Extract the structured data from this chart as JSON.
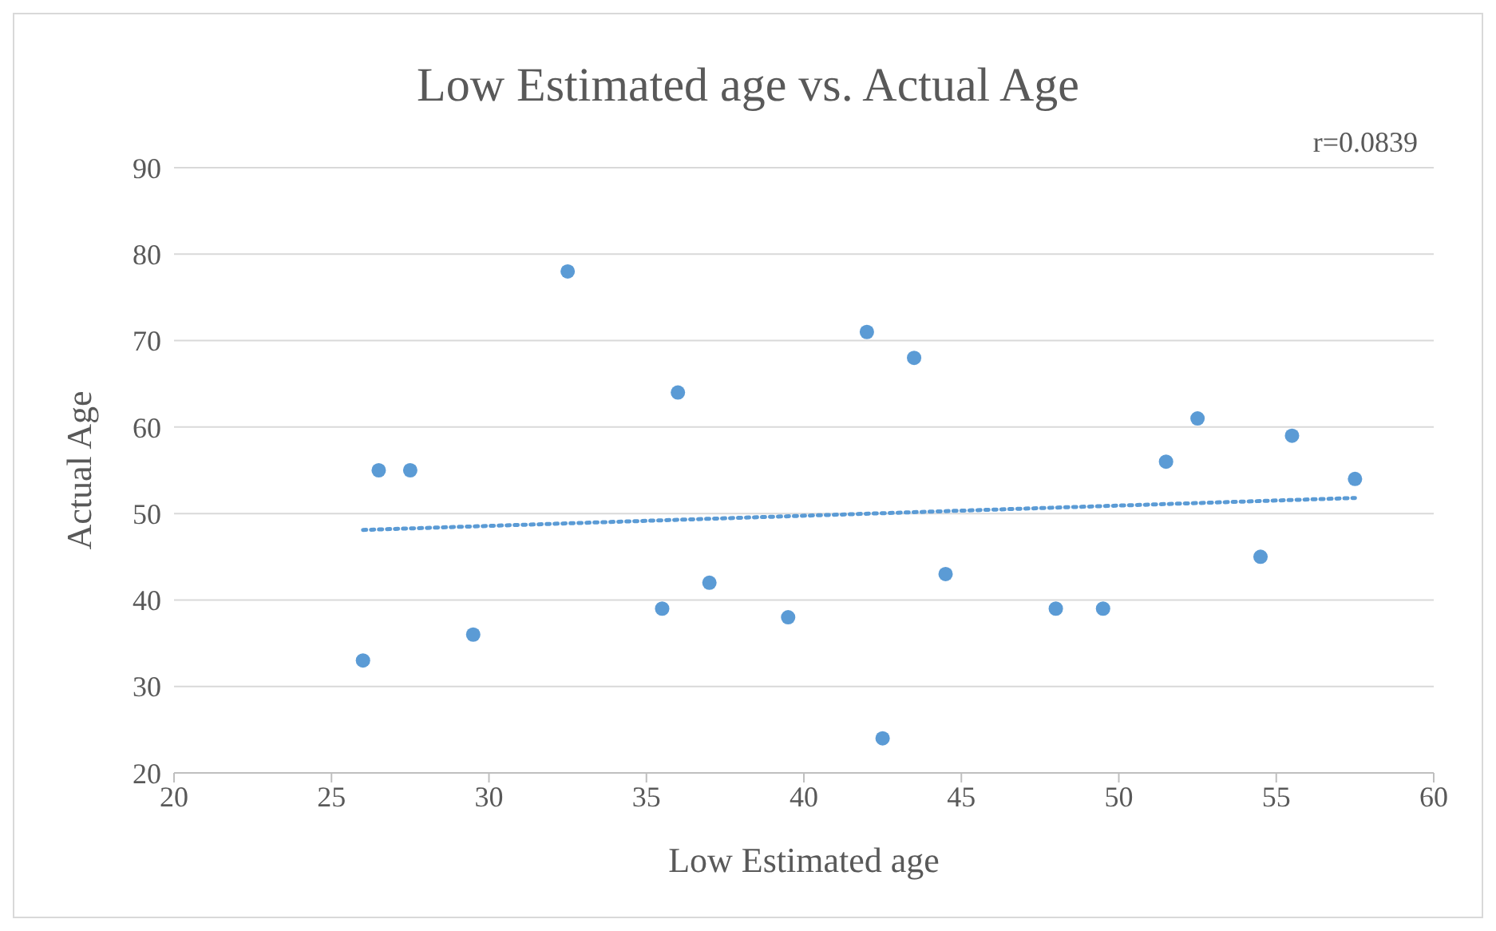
{
  "chart_data": {
    "type": "scatter",
    "title": "Low Estimated age vs. Actual Age",
    "xlabel": "Low Estimated age",
    "ylabel": "Actual Age",
    "annotations": [
      "r=0.0839"
    ],
    "x": [
      26,
      26.5,
      27.5,
      29.5,
      32.5,
      35.5,
      36,
      37,
      39.5,
      42,
      42.5,
      43.5,
      44.5,
      48,
      49.5,
      51.5,
      52.5,
      54.5,
      55.5,
      57.5
    ],
    "series": [
      {
        "color": "#5b9bd5",
        "values": [
          33,
          55,
          55,
          36,
          78,
          39,
          64,
          42,
          38,
          71,
          24,
          68,
          43,
          39,
          39,
          56,
          61,
          45,
          59,
          54
        ],
        "marker": "circle"
      },
      {
        "type": "line",
        "color": "#5b9bd5",
        "x": [
          26,
          57.5
        ],
        "values": [
          48.1,
          51.8
        ],
        "line_style": "dotted",
        "marker": "none"
      }
    ],
    "xlim": [
      20,
      60
    ],
    "xticks": [
      20,
      25,
      30,
      35,
      40,
      45,
      50,
      55,
      60
    ],
    "ylim": [
      20,
      90
    ],
    "yticks": [
      20,
      30,
      40,
      50,
      60,
      70,
      80,
      90
    ],
    "grid": "y",
    "legend": false
  }
}
